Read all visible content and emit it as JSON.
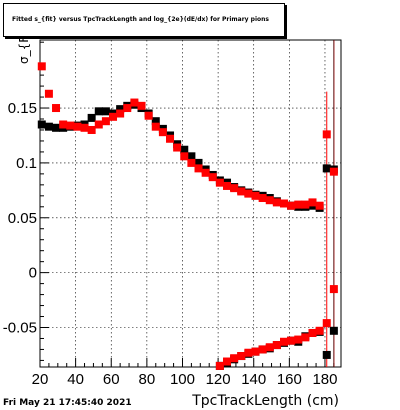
{
  "chart_data": {
    "type": "scatter",
    "title": "Fitted s_{fit} versus TpcTrackLength and log_{2e}(dE/dx) for Primary pions",
    "xlabel": "TpcTrackLength (cm)",
    "ylabel": "σ_{Fit}",
    "timestamp": "Fri May 21 17:45:40 2021",
    "xlim": [
      20,
      189
    ],
    "ylim": [
      -0.086,
      0.212
    ],
    "grid": true,
    "x_ticks": [
      20,
      40,
      60,
      80,
      100,
      120,
      140,
      160,
      180
    ],
    "y_ticks": [
      -0.05,
      0,
      0.05,
      0.1,
      0.15
    ],
    "y_tick_labels": [
      "-0.05",
      "0",
      "0.05",
      "0.1",
      "0.15"
    ],
    "colors": {
      "black": "#000000",
      "red": "#ff0000"
    },
    "series": [
      {
        "color": "black",
        "x": [
          21,
          25,
          29,
          33,
          37,
          41,
          45,
          49,
          53,
          57,
          61,
          65,
          69,
          73,
          77,
          81,
          85,
          89,
          93,
          97,
          101,
          105,
          109,
          113,
          117,
          121,
          125,
          129,
          133,
          137,
          141,
          145,
          149,
          153,
          157,
          161,
          165,
          169,
          173,
          177,
          181,
          185
        ],
        "y": [
          0.135,
          0.133,
          0.132,
          0.132,
          0.133,
          0.134,
          0.135,
          0.141,
          0.147,
          0.147,
          0.145,
          0.149,
          0.152,
          0.153,
          0.15,
          0.145,
          0.138,
          0.131,
          0.125,
          0.117,
          0.112,
          0.106,
          0.1,
          0.094,
          0.089,
          0.084,
          0.082,
          0.078,
          0.075,
          0.073,
          0.071,
          0.07,
          0.068,
          0.065,
          0.063,
          0.061,
          0.06,
          0.06,
          0.061,
          0.059,
          0.095,
          0.094
        ]
      },
      {
        "color": "red",
        "x": [
          21,
          25,
          29,
          33,
          37,
          41,
          45,
          49,
          53,
          57,
          61,
          65,
          69,
          73,
          77,
          81,
          85,
          89,
          93,
          97,
          101,
          105,
          109,
          113,
          117,
          121,
          125,
          129,
          133,
          137,
          141,
          145,
          149,
          153,
          157,
          161,
          165,
          169,
          173,
          177,
          181,
          185
        ],
        "y": [
          0.188,
          0.163,
          0.15,
          0.135,
          0.134,
          0.133,
          0.132,
          0.13,
          0.135,
          0.138,
          0.142,
          0.145,
          0.15,
          0.155,
          0.152,
          0.143,
          0.133,
          0.128,
          0.122,
          0.114,
          0.106,
          0.1,
          0.095,
          0.091,
          0.087,
          0.082,
          0.079,
          0.077,
          0.074,
          0.072,
          0.07,
          0.068,
          0.066,
          0.064,
          0.063,
          0.061,
          0.062,
          0.062,
          0.064,
          0.061,
          0.126,
          0.092
        ]
      },
      {
        "color": "black",
        "x": [
          121,
          125,
          129,
          133,
          137,
          141,
          145,
          149,
          153,
          157,
          161,
          165,
          169,
          173,
          177,
          181,
          185
        ],
        "y": [
          -0.085,
          -0.082,
          -0.079,
          -0.076,
          -0.074,
          -0.072,
          -0.07,
          -0.069,
          -0.066,
          -0.064,
          -0.062,
          -0.063,
          -0.058,
          -0.055,
          -0.054,
          -0.075,
          -0.053
        ]
      },
      {
        "color": "red",
        "x": [
          121,
          125,
          129,
          133,
          137,
          141,
          145,
          149,
          153,
          157,
          161,
          165,
          169,
          173,
          177,
          181,
          185
        ],
        "y": [
          -0.085,
          -0.081,
          -0.078,
          -0.076,
          -0.073,
          -0.072,
          -0.07,
          -0.068,
          -0.066,
          -0.063,
          -0.062,
          -0.061,
          -0.059,
          -0.055,
          -0.053,
          -0.046,
          -0.015
        ]
      }
    ]
  }
}
